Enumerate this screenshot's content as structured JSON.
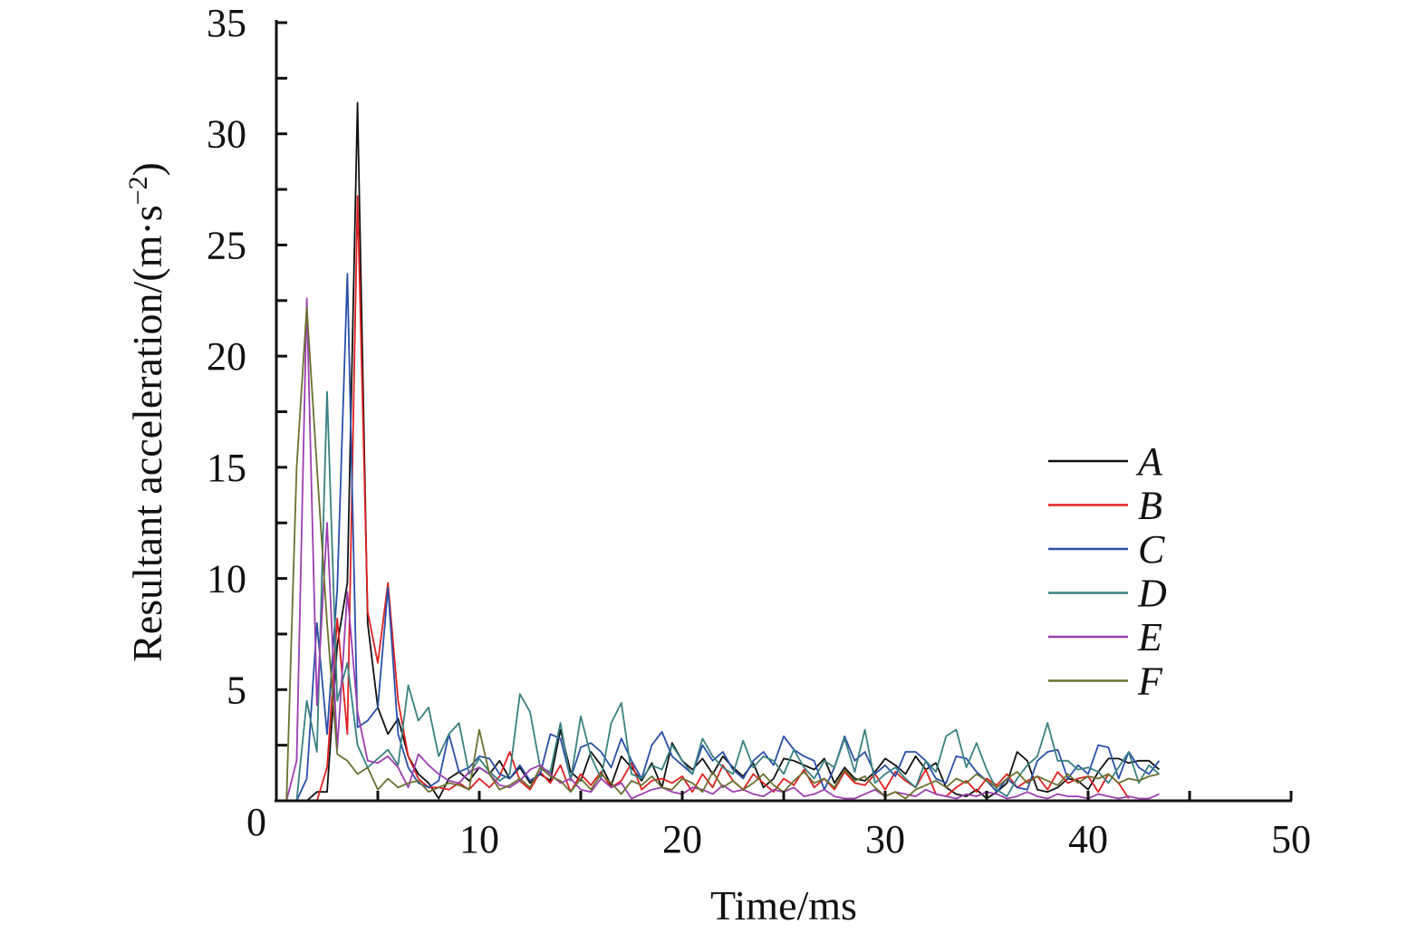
{
  "chart_data": {
    "type": "line",
    "title": "",
    "xlabel": "Time/ms",
    "ylabel": {
      "main": "Resultant acceleration/(m·s",
      "sup": "−2",
      "close": ")"
    },
    "xlim": [
      0,
      50
    ],
    "ylim": [
      0,
      35
    ],
    "xticks": [
      10,
      20,
      30,
      40,
      50
    ],
    "xtick_marks": [
      5,
      10,
      15,
      20,
      25,
      30,
      35,
      40,
      45,
      50
    ],
    "yticks": [
      5,
      10,
      15,
      20,
      25,
      30,
      35
    ],
    "ytick_minor_step": 2.5,
    "origin_label": "0",
    "grid": false,
    "legend_position": "right",
    "x_start": 0,
    "x_step": 0.5,
    "series": [
      {
        "name": "A",
        "color": "#111111",
        "values": [
          0,
          0,
          0,
          0,
          0.4,
          0.4,
          7,
          9.8,
          31.4,
          8,
          4.2,
          3,
          3.7,
          2,
          1.2,
          0.8,
          0.1,
          1.0,
          1.3,
          0.9,
          1.5,
          1.2,
          1.8,
          1.0,
          1.5,
          0.8,
          1.2,
          0.9,
          3.2,
          1.3,
          0.9,
          2.2,
          1.6,
          0.7,
          2.0,
          1.5,
          0.9,
          1.7,
          0.6,
          2.6,
          1.8,
          1.4,
          1.9,
          1.2,
          2.0,
          1.5,
          1.1,
          1.7,
          0.6,
          1.0,
          1.9,
          1.8,
          1.6,
          1.4,
          1.9,
          0.8,
          1.5,
          1.0,
          0.9,
          1.3,
          1.9,
          1.6,
          1.2,
          2.0,
          1.4,
          1.7,
          0.6,
          0.3,
          0.2,
          0.5,
          0.1,
          0.4,
          0.8,
          2.2,
          1.8,
          0.5,
          0.4,
          0.6,
          1.0,
          0.9,
          0.5,
          1.3,
          1.9,
          1.9,
          1.7,
          1.8,
          1.8,
          1.4
        ]
      },
      {
        "name": "B",
        "color": "#e02020",
        "values": [
          0,
          0,
          0,
          0,
          0,
          1.5,
          8.2,
          3,
          27.2,
          8.5,
          6.2,
          9.8,
          4.5,
          2,
          1,
          0.6,
          0.6,
          0.5,
          0.8,
          0.5,
          1.0,
          0.6,
          1.1,
          2.2,
          0.9,
          0.5,
          1.3,
          0.8,
          1.6,
          0.4,
          1.2,
          0.7,
          1.3,
          0.6,
          0.9,
          1.7,
          0.5,
          0.9,
          1.0,
          0.8,
          1.1,
          0.4,
          1.2,
          0.6,
          1.6,
          0.9,
          0.5,
          1.2,
          0.8,
          0.4,
          1.0,
          0.7,
          1.4,
          0.6,
          1.0,
          0.5,
          1.3,
          0.8,
          0.7,
          1.2,
          0.5,
          1.3,
          0.9,
          0.6,
          1.4,
          0.3,
          0.2,
          0.6,
          0.9,
          0.4,
          1.0,
          0.7,
          1.2,
          0.6,
          0.9,
          1.1,
          0.5,
          1.3,
          0.8,
          1.0,
          1.1,
          0.4,
          1.2,
          0.8,
          0.1
        ]
      },
      {
        "name": "C",
        "color": "#2a4fa8",
        "values": [
          0,
          0,
          0,
          1,
          8,
          3,
          9.5,
          23.7,
          3.3,
          3.6,
          4.2,
          9.6,
          3,
          1.5,
          0.8,
          0.6,
          0.9,
          3.0,
          1.3,
          1.5,
          2.0,
          1.9,
          1.2,
          1.0,
          1.6,
          0.9,
          1.2,
          3.0,
          2.8,
          1.0,
          2.4,
          2.6,
          2.2,
          1.5,
          2.8,
          1.8,
          1.0,
          2.5,
          3.1,
          2.0,
          1.6,
          1.2,
          2.5,
          1.8,
          2.2,
          1.4,
          1.0,
          1.8,
          2.2,
          1.6,
          2.9,
          2.3,
          2.0,
          1.8,
          0.5,
          1.5,
          2.9,
          1.8,
          2.2,
          1.2,
          1.6,
          1.1,
          2.2,
          2.2,
          1.8,
          1.0,
          0.8,
          2.0,
          1.9,
          1.3,
          0.9,
          0.4,
          1.0,
          0.6,
          0.5,
          1.8,
          2.2,
          2.3,
          1.0,
          1.6,
          1.2,
          2.5,
          2.4,
          1.0,
          2.2,
          1.5,
          1.2,
          1.8
        ]
      },
      {
        "name": "D",
        "color": "#3a8080",
        "values": [
          0,
          0,
          0,
          4.5,
          2.2,
          18.4,
          4.5,
          6.2,
          2.5,
          1.5,
          1.9,
          2.3,
          1.6,
          5.2,
          3.6,
          4.2,
          2.0,
          3.0,
          3.5,
          1.2,
          1.9,
          1.3,
          0.9,
          1.2,
          4.8,
          4.0,
          1.5,
          1.3,
          3.5,
          0.9,
          3.8,
          2.0,
          1.0,
          3.5,
          4.4,
          1.2,
          1.0,
          1.6,
          1.4,
          2.5,
          1.8,
          1.2,
          2.8,
          2.0,
          1.5,
          1.2,
          2.7,
          1.5,
          2.0,
          1.8,
          1.2,
          2.3,
          1.5,
          1.0,
          1.8,
          1.5,
          2.8,
          1.3,
          3.2,
          0.8,
          1.2,
          1.5,
          1.0,
          0.6,
          1.8,
          1.3,
          2.9,
          3.2,
          1.5,
          2.6,
          1.4,
          0.5,
          0.2,
          1.0,
          1.6,
          2.0,
          3.5,
          1.8,
          1.8,
          1.4,
          1.5,
          1.3,
          0.8,
          1.5,
          2.2,
          0.8,
          1.6,
          1.2
        ]
      },
      {
        "name": "E",
        "color": "#9b3fb0",
        "values": [
          0,
          0,
          1.8,
          22.6,
          4.3,
          12.5,
          2.3,
          9.4,
          4,
          1.8,
          1.7,
          2.0,
          1.5,
          0.6,
          2.1,
          1.6,
          1.2,
          0.9,
          0.8,
          1.3,
          1.5,
          1.2,
          0.7,
          0.6,
          0.9,
          1.4,
          1.6,
          1.2,
          0.8,
          1.0,
          0.5,
          0.4,
          1.0,
          0.6,
          0.8,
          0.1,
          0.3,
          0.5,
          0.6,
          0.4,
          0.3,
          0.6,
          0.5,
          0.3,
          0.7,
          0.4,
          0.5,
          0.3,
          0.2,
          0.5,
          0.4,
          0.6,
          0.2,
          0.3,
          0.5,
          0.2,
          0.1,
          0.1,
          0.3,
          0.5,
          0.2,
          0.4,
          0.3,
          0.2,
          0.5,
          0.3,
          0.2,
          0.1,
          0.3,
          0.2,
          0.4,
          0.3,
          0.1,
          0.2,
          0.4,
          0.2,
          0.1,
          0.3,
          0.2,
          0.2,
          0.1,
          0.3,
          0.2,
          0.1,
          0.2,
          0.1,
          0.1,
          0.3
        ]
      },
      {
        "name": "F",
        "color": "#6b7030",
        "values": [
          0,
          0,
          15,
          22.2,
          15,
          8,
          2.1,
          1.8,
          1.2,
          1.5,
          0.5,
          1.0,
          0.6,
          0.8,
          0.9,
          0.4,
          0.6,
          0.8,
          0.7,
          0.5,
          3.2,
          1.2,
          0.5,
          0.7,
          1.0,
          0.6,
          1.5,
          1.1,
          0.9,
          0.4,
          1.0,
          0.5,
          1.2,
          0.8,
          0.3,
          0.9,
          0.7,
          1.1,
          0.6,
          0.5,
          1.0,
          0.8,
          0.4,
          1.3,
          0.6,
          0.9,
          0.5,
          0.8,
          1.2,
          0.7,
          0.4,
          0.9,
          1.3,
          0.8,
          1.0,
          0.6,
          1.4,
          0.9,
          1.1,
          0.6,
          0.2,
          0.4,
          0.1,
          0.5,
          0.7,
          0.9,
          0.6,
          1.0,
          0.8,
          1.2,
          0.9,
          0.6,
          1.0,
          1.3,
          0.8,
          1.1,
          0.9,
          0.7,
          1.2,
          0.8,
          1.1,
          1.0,
          1.2,
          0.8,
          1.0,
          0.9,
          1.1,
          1.2
        ]
      }
    ]
  }
}
